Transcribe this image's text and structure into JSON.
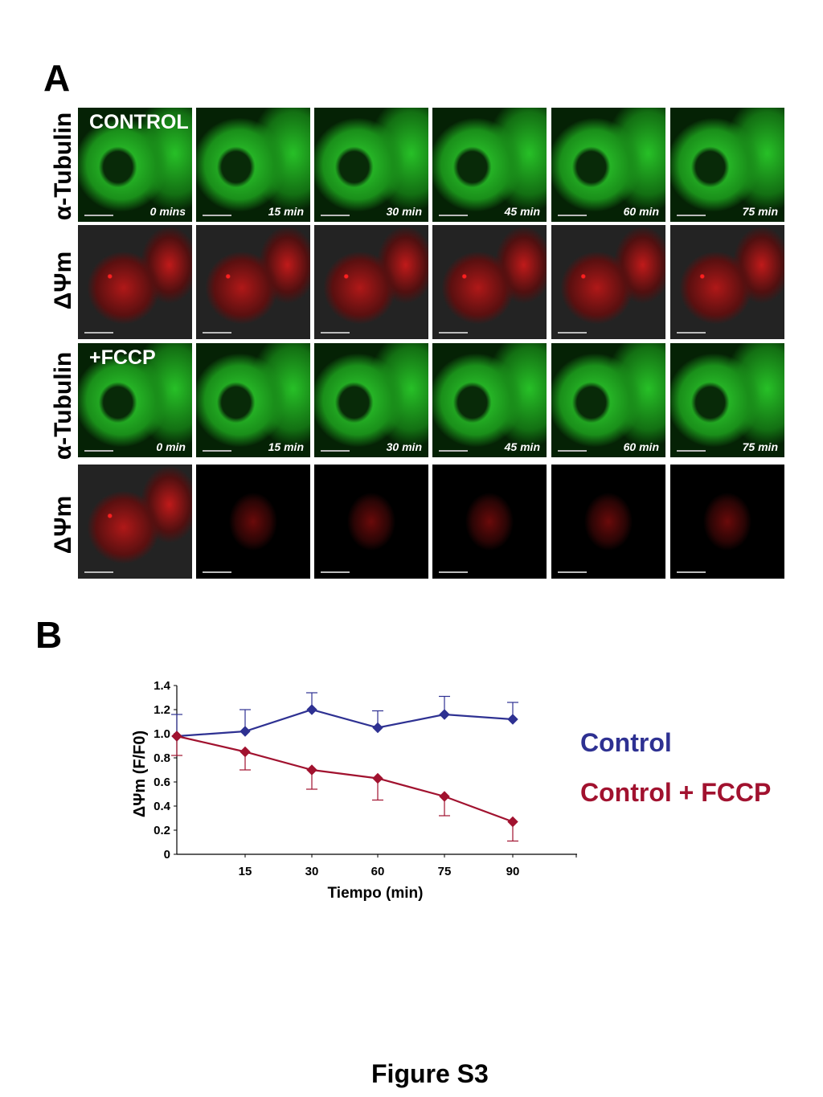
{
  "panel_a": {
    "letter": "A",
    "row_labels": [
      "α-Tubulin",
      "ΔΨm",
      "α-Tubulin",
      "ΔΨm"
    ],
    "conditions": [
      "CONTROL",
      "+FCCP"
    ],
    "control_times": [
      "0 mins",
      "15 min",
      "30 min",
      "45 min",
      "60 min",
      "75 min"
    ],
    "fccp_times": [
      "0 min",
      "15 min",
      "30 min",
      "45 min",
      "60 min",
      "75 min"
    ]
  },
  "panel_b": {
    "letter": "B",
    "legend": [
      "Control",
      "Control + FCCP"
    ]
  },
  "chart_data": {
    "type": "line",
    "xlabel": "Tiempo (min)",
    "ylabel": "ΔΨm (F/F0)",
    "x_ticks": [
      "15",
      "30",
      "60",
      "75",
      "90"
    ],
    "y_ticks": [
      "0",
      "0.2",
      "0.4",
      "0.6",
      "0.8",
      "1.0",
      "1.2",
      "1.4"
    ],
    "ylim": [
      0,
      1.4
    ],
    "series": [
      {
        "name": "Control",
        "color": "#2e3192",
        "x": [
          "0",
          "15",
          "30",
          "60",
          "75",
          "90"
        ],
        "values": [
          0.98,
          1.02,
          1.2,
          1.05,
          1.16,
          1.12
        ],
        "error": [
          0.18,
          0.18,
          0.14,
          0.14,
          0.15,
          0.14
        ]
      },
      {
        "name": "Control + FCCP",
        "color": "#a1122f",
        "x": [
          "0",
          "15",
          "30",
          "60",
          "75",
          "90"
        ],
        "values": [
          0.98,
          0.85,
          0.7,
          0.63,
          0.48,
          0.27
        ],
        "error": [
          0.16,
          0.15,
          0.16,
          0.18,
          0.16,
          0.16
        ]
      }
    ]
  },
  "figure_title": "Figure S3"
}
